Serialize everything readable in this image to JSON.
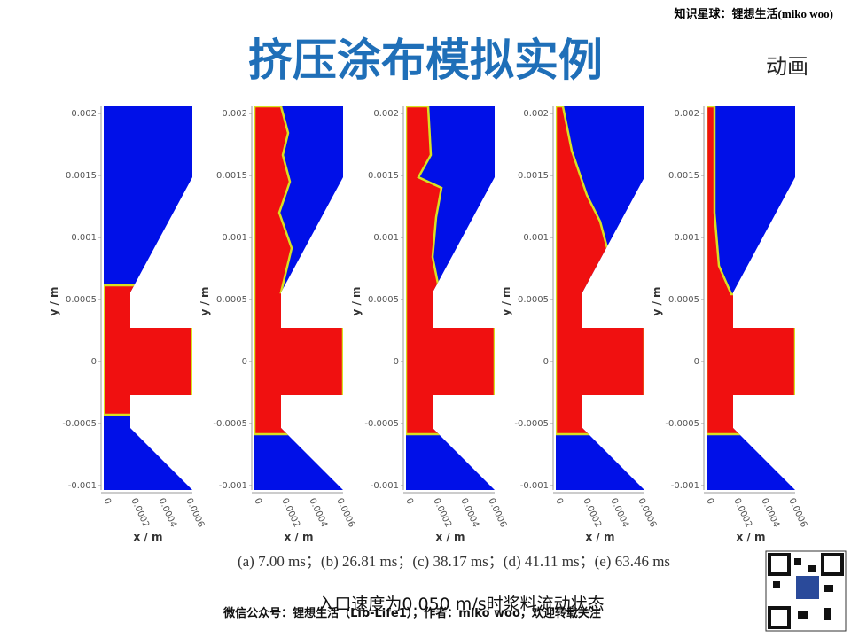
{
  "header": {
    "watermark": "知识星球：锂想生活(miko woo)",
    "title": "挤压涂布模拟实例",
    "tag": "动画"
  },
  "axes": {
    "y_label": "y / m",
    "x_label": "x / m",
    "y_ticks": [
      "0.002",
      "0.0015",
      "0.001",
      "0.0005",
      "0",
      "-0.0005",
      "-0.001"
    ],
    "x_ticks": [
      "0",
      "0.0002",
      "0.0004",
      "0.0006"
    ]
  },
  "caption": "(a) 7.00 ms；(b) 26.81 ms；(c) 38.17 ms；(d) 41.11 ms；(e) 63.46 ms",
  "subtitle": "入口速度为0.050 m/s时浆料流动状态",
  "footer": "微信公众号：锂想生活（Lib-Life1），作者：miko woo，欢迎转载关注"
}
